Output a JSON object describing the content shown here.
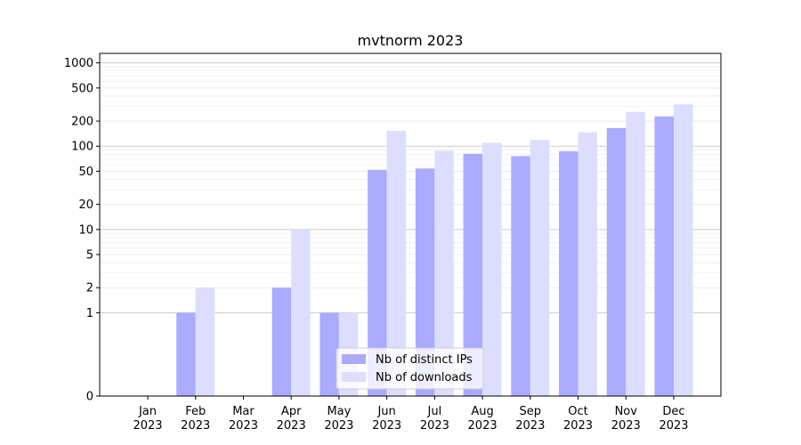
{
  "chart_data": {
    "type": "bar",
    "title": "mvtnorm 2023",
    "xlabel": "",
    "ylabel": "",
    "yscale": "symlog",
    "ylim": [
      0,
      1300
    ],
    "yticks": [
      0,
      1,
      2,
      5,
      10,
      20,
      50,
      100,
      200,
      500,
      1000
    ],
    "ytick_labels": [
      "0",
      "1",
      "2",
      "5",
      "10",
      "20",
      "50",
      "100",
      "200",
      "500",
      "1000"
    ],
    "categories": [
      [
        "Jan",
        "2023"
      ],
      [
        "Feb",
        "2023"
      ],
      [
        "Mar",
        "2023"
      ],
      [
        "Apr",
        "2023"
      ],
      [
        "May",
        "2023"
      ],
      [
        "Jun",
        "2023"
      ],
      [
        "Jul",
        "2023"
      ],
      [
        "Aug",
        "2023"
      ],
      [
        "Sep",
        "2023"
      ],
      [
        "Oct",
        "2023"
      ],
      [
        "Nov",
        "2023"
      ],
      [
        "Dec",
        "2023"
      ]
    ],
    "series": [
      {
        "name": "Nb of distinct IPs",
        "color": "#aaaaff",
        "values": [
          0,
          1,
          0,
          2,
          1,
          52,
          54,
          81,
          76,
          87,
          165,
          228
        ]
      },
      {
        "name": "Nb of downloads",
        "color": "#ddddff",
        "values": [
          0,
          2,
          0,
          10,
          1,
          153,
          88,
          110,
          119,
          147,
          258,
          318
        ]
      }
    ],
    "grid": true,
    "legend_position": "bottom-center"
  }
}
